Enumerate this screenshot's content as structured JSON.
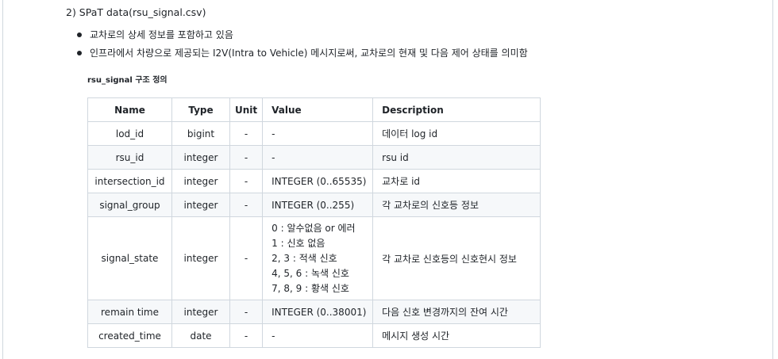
{
  "heading": "2) SPaT data(rsu_signal.csv)",
  "bullets": [
    "교차로의 상세 정보를 포함하고 있음",
    "인프라에서 차량으로 제공되는 I2V(Intra to Vehicle) 메시지로써, 교차로의 현재 및 다음 제어 상태를 의미함"
  ],
  "caption": "rsu_signal 구조 정의",
  "table": {
    "headers": [
      "Name",
      "Type",
      "Unit",
      "Value",
      "Description"
    ],
    "rows": [
      {
        "name": "lod_id",
        "type": "bigint",
        "unit": "-",
        "value": "-",
        "description": "데이터 log id"
      },
      {
        "name": "rsu_id",
        "type": "integer",
        "unit": "-",
        "value": "-",
        "description": "rsu id"
      },
      {
        "name": "intersection_id",
        "type": "integer",
        "unit": "-",
        "value": "INTEGER (0..65535)",
        "description": "교차로 id"
      },
      {
        "name": "signal_group",
        "type": "integer",
        "unit": "-",
        "value": "INTEGER (0..255)",
        "description": "각 교차로의 신호등 정보"
      },
      {
        "name": "signal_state",
        "type": "integer",
        "unit": "-",
        "value_lines": [
          "0 : 알수없음 or 에러",
          "1 : 신호 없음",
          "2, 3 : 적색 신호",
          "4, 5, 6 : 녹색 신호",
          "7, 8, 9 : 황색 신호"
        ],
        "description": "각 교차로 신호등의 신호현시 정보"
      },
      {
        "name": "remain time",
        "type": "integer",
        "unit": "-",
        "value": "INTEGER (0..38001)",
        "description": "다음 신호 변경까지의 잔여 시간"
      },
      {
        "name": "created_time",
        "type": "date",
        "unit": "-",
        "value": "-",
        "description": "메시지 생성 시간"
      }
    ]
  }
}
